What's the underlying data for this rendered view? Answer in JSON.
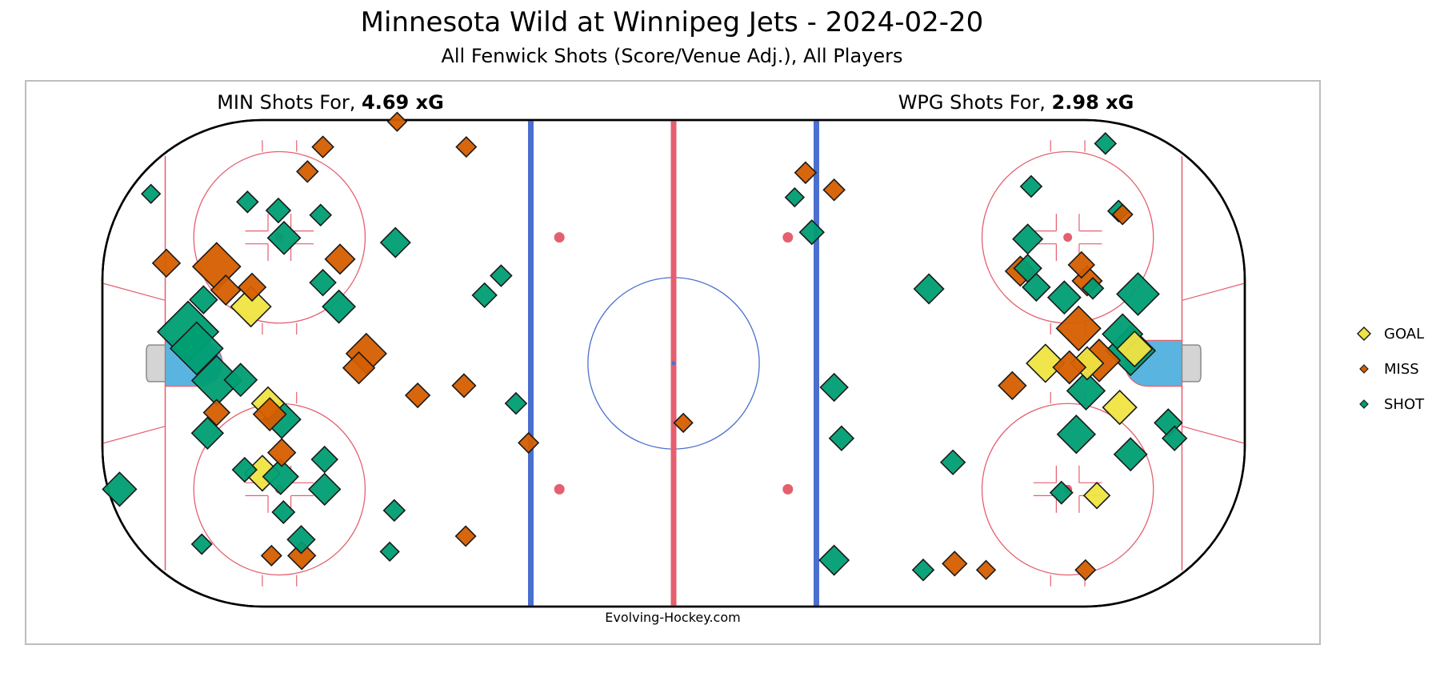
{
  "title": "Minnesota Wild at Winnipeg Jets - 2024-02-20",
  "subtitle": "All Fenwick Shots (Score/Venue Adj.), All Players",
  "left_team": {
    "prefix": "MIN Shots For, ",
    "xg": "4.69 xG"
  },
  "right_team": {
    "prefix": "WPG Shots For, ",
    "xg": "2.98 xG"
  },
  "credit": "Evolving-Hockey.com",
  "colors": {
    "goal": "#f0e442",
    "miss": "#d55e00",
    "shot": "#009e73",
    "rink_red": "#e4606f",
    "rink_blue": "#4a6fcf",
    "crease": "#5ab4e0",
    "net": "#d4d4d4"
  },
  "legend": [
    {
      "label": "GOAL",
      "type": "goal"
    },
    {
      "label": "MISS",
      "type": "miss"
    },
    {
      "label": "SHOT",
      "type": "shot"
    }
  ],
  "chart_data": {
    "type": "scatter",
    "x_range": [
      -100,
      100
    ],
    "y_range": [
      -42.5,
      42.5
    ],
    "size_encodes": "xG",
    "series": [
      {
        "name": "GOAL",
        "points": [
          [
            -74.0,
            9.9,
            0.35
          ],
          [
            -71.0,
            -7.0,
            0.2
          ],
          [
            -72.0,
            -19.2,
            0.25
          ],
          [
            72.4,
            0.0,
            0.2
          ],
          [
            65.1,
            0.0,
            0.3
          ],
          [
            78.1,
            -7.7,
            0.22
          ],
          [
            80.7,
            2.5,
            0.25
          ],
          [
            74.1,
            -23.1,
            0.1
          ]
        ]
      },
      {
        "name": "MISS",
        "points": [
          [
            -88.8,
            17.5,
            0.12
          ],
          [
            -80.0,
            16.9,
            0.55
          ],
          [
            -78.4,
            12.8,
            0.15
          ],
          [
            -73.8,
            13.3,
            0.12
          ],
          [
            -80.0,
            -8.6,
            0.1
          ],
          [
            -70.7,
            -8.9,
            0.2
          ],
          [
            -68.6,
            -15.6,
            0.12
          ],
          [
            -58.4,
            18.2,
            0.15
          ],
          [
            -53.8,
            1.7,
            0.35
          ],
          [
            -55.1,
            -0.8,
            0.18
          ],
          [
            -44.8,
            -5.6,
            0.08
          ],
          [
            -36.7,
            -3.9,
            0.07
          ],
          [
            -61.4,
            37.8,
            0.05
          ],
          [
            -64.1,
            33.5,
            0.05
          ],
          [
            -48.4,
            42.2,
            0.03
          ],
          [
            -36.3,
            37.8,
            0.04
          ],
          [
            -25.4,
            -13.9,
            0.04
          ],
          [
            -36.4,
            -30.2,
            0.04
          ],
          [
            -70.4,
            -33.6,
            0.04
          ],
          [
            -65.1,
            -33.6,
            0.12
          ],
          [
            23.1,
            33.3,
            0.05
          ],
          [
            28.1,
            30.3,
            0.05
          ],
          [
            1.7,
            -10.4,
            0.03
          ],
          [
            60.7,
            16.1,
            0.15
          ],
          [
            71.4,
            17.2,
            0.1
          ],
          [
            72.4,
            14.4,
            0.15
          ],
          [
            70.9,
            6.1,
            0.45
          ],
          [
            74.5,
            0.5,
            0.4
          ],
          [
            69.3,
            -0.7,
            0.2
          ],
          [
            59.3,
            -3.9,
            0.12
          ],
          [
            78.6,
            26.0,
            0.04
          ],
          [
            49.2,
            -35.0,
            0.08
          ],
          [
            54.7,
            -36.1,
            0.03
          ],
          [
            72.1,
            -36.1,
            0.04
          ]
        ]
      },
      {
        "name": "SHOT",
        "points": [
          [
            -91.5,
            29.6,
            0.03
          ],
          [
            -74.6,
            28.2,
            0.05
          ],
          [
            -69.2,
            26.7,
            0.08
          ],
          [
            -61.8,
            25.9,
            0.05
          ],
          [
            -68.2,
            21.9,
            0.2
          ],
          [
            -48.7,
            21.1,
            0.15
          ],
          [
            -30.2,
            15.3,
            0.05
          ],
          [
            -33.1,
            11.9,
            0.08
          ],
          [
            -61.4,
            14.1,
            0.1
          ],
          [
            -58.6,
            9.9,
            0.2
          ],
          [
            -82.3,
            11.1,
            0.12
          ],
          [
            -85.0,
            5.5,
            1.0
          ],
          [
            -83.5,
            2.6,
            0.7
          ],
          [
            -80.0,
            -3.0,
            0.6
          ],
          [
            -75.8,
            -2.9,
            0.2
          ],
          [
            -81.6,
            -12.2,
            0.18
          ],
          [
            -68.6,
            -9.8,
            0.3
          ],
          [
            -75.1,
            -18.6,
            0.08
          ],
          [
            -68.8,
            -19.8,
            0.25
          ],
          [
            -61.1,
            -16.8,
            0.1
          ],
          [
            -61.1,
            -22.0,
            0.18
          ],
          [
            -68.3,
            -26.0,
            0.06
          ],
          [
            -65.2,
            -30.8,
            0.12
          ],
          [
            -48.9,
            -25.7,
            0.05
          ],
          [
            -27.6,
            -7.0,
            0.05
          ],
          [
            -82.6,
            -31.6,
            0.04
          ],
          [
            -49.7,
            -32.9,
            0.03
          ],
          [
            -97.0,
            -22.0,
            0.22
          ],
          [
            24.2,
            22.9,
            0.08
          ],
          [
            21.2,
            29.0,
            0.03
          ],
          [
            44.7,
            13.0,
            0.15
          ],
          [
            28.1,
            -4.2,
            0.12
          ],
          [
            29.4,
            -13.1,
            0.08
          ],
          [
            48.9,
            -17.3,
            0.08
          ],
          [
            28.1,
            -34.4,
            0.15
          ],
          [
            43.7,
            -36.1,
            0.05
          ],
          [
            62.6,
            30.9,
            0.05
          ],
          [
            77.9,
            26.6,
            0.05
          ],
          [
            81.3,
            12.1,
            0.4
          ],
          [
            62.0,
            21.7,
            0.15
          ],
          [
            62.0,
            16.6,
            0.12
          ],
          [
            63.5,
            13.3,
            0.12
          ],
          [
            68.4,
            11.5,
            0.2
          ],
          [
            78.6,
            5.1,
            0.35
          ],
          [
            80.0,
            2.2,
            0.6
          ],
          [
            72.2,
            -4.8,
            0.3
          ],
          [
            70.5,
            -12.4,
            0.3
          ],
          [
            80.0,
            -15.9,
            0.2
          ],
          [
            86.6,
            -10.4,
            0.12
          ],
          [
            87.7,
            -13.1,
            0.08
          ],
          [
            67.9,
            -22.6,
            0.06
          ],
          [
            73.4,
            13.1,
            0.05
          ],
          [
            75.6,
            38.4,
            0.05
          ]
        ]
      }
    ]
  }
}
